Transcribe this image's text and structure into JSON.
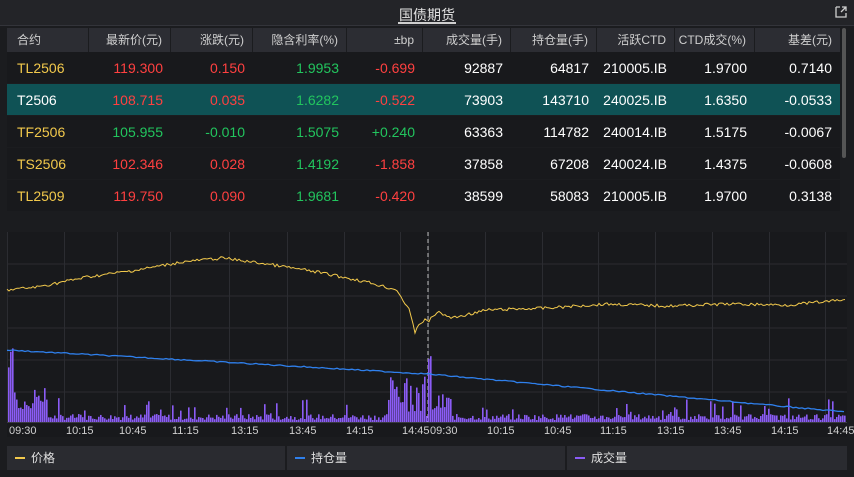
{
  "window": {
    "title": "国债期货"
  },
  "table": {
    "headers": [
      "合约",
      "最新价(元)",
      "涨跌(元)",
      "隐含利率(%)",
      "±bp",
      "成交量(手)",
      "持仓量(手)",
      "活跃CTD",
      "CTD成交(%)",
      "基差(元)"
    ],
    "rows": [
      {
        "contract": "TL2506",
        "price": "119.300",
        "change": "0.150",
        "rate": "1.9953",
        "bp": "-0.699",
        "volume": "92887",
        "oi": "64817",
        "ctd": "210005.IB",
        "ctd_pct": "1.9700",
        "basis": "0.7140",
        "dir": "red",
        "bpdir": "red"
      },
      {
        "contract": "T2506",
        "price": "108.715",
        "change": "0.035",
        "rate": "1.6282",
        "bp": "-0.522",
        "volume": "73903",
        "oi": "143710",
        "ctd": "240025.IB",
        "ctd_pct": "1.6350",
        "basis": "-0.0533",
        "dir": "red",
        "bpdir": "red"
      },
      {
        "contract": "TF2506",
        "price": "105.955",
        "change": "-0.010",
        "rate": "1.5075",
        "bp": "+0.240",
        "volume": "63363",
        "oi": "114782",
        "ctd": "240014.IB",
        "ctd_pct": "1.5175",
        "basis": "-0.0067",
        "dir": "green",
        "bpdir": "green"
      },
      {
        "contract": "TS2506",
        "price": "102.346",
        "change": "0.028",
        "rate": "1.4192",
        "bp": "-1.858",
        "volume": "37858",
        "oi": "67208",
        "ctd": "240024.IB",
        "ctd_pct": "1.4375",
        "basis": "-0.0608",
        "dir": "red",
        "bpdir": "red"
      },
      {
        "contract": "TL2509",
        "price": "119.750",
        "change": "0.090",
        "rate": "1.9681",
        "bp": "-0.420",
        "volume": "38599",
        "oi": "58083",
        "ctd": "210005.IB",
        "ctd_pct": "1.9700",
        "basis": "0.3138",
        "dir": "red",
        "bpdir": "red"
      }
    ]
  },
  "chart_data": {
    "type": "line",
    "x_ticks": [
      "09:30",
      "10:15",
      "10:45",
      "11:15",
      "13:15",
      "13:45",
      "14:15",
      "14:45",
      "09:30",
      "10:15",
      "10:45",
      "11:15",
      "13:15",
      "13:45",
      "14:15",
      "14:45"
    ],
    "series": [
      {
        "name": "价格",
        "color": "#f2c94c"
      },
      {
        "name": "持仓量",
        "color": "#2f80ed"
      },
      {
        "name": "成交量",
        "color": "#8b5cf6"
      }
    ],
    "grid": true
  },
  "legend": {
    "price": "价格",
    "oi": "持仓量",
    "volume": "成交量"
  },
  "colors": {
    "price": "#f2c94c",
    "oi": "#2f80ed",
    "volume": "#8b5cf6",
    "up": "#ff4040",
    "down": "#22c55e",
    "selected": "#0f5255"
  }
}
